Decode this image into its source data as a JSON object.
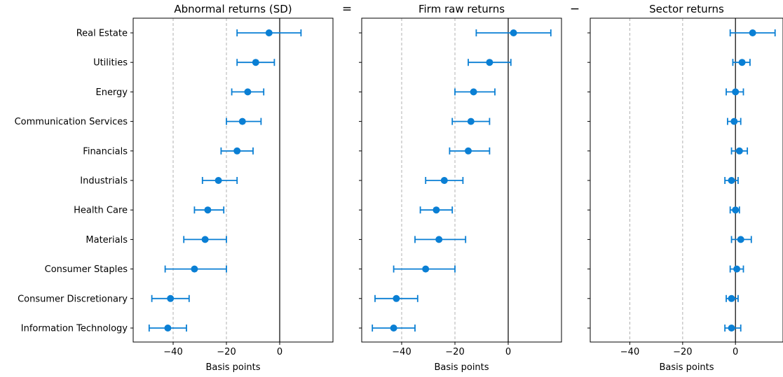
{
  "figure": {
    "operators": [
      "=",
      "−"
    ]
  },
  "chart_data": [
    {
      "type": "scatter",
      "title": "Abnormal returns (SD)",
      "xlabel": "Basis points",
      "xlim": [
        -55,
        20
      ],
      "xticks": [
        -40,
        -20,
        0
      ],
      "xtick_labels": [
        "−40",
        "−20",
        "0"
      ],
      "dashed_lines": [
        -40,
        -20
      ],
      "zero_line": 0,
      "categories": [
        "Real Estate",
        "Utilities",
        "Energy",
        "Communication Services",
        "Financials",
        "Industrials",
        "Health Care",
        "Materials",
        "Consumer Staples",
        "Consumer Discretionary",
        "Information Technology"
      ],
      "values": [
        -4,
        -9,
        -12,
        -14,
        -16,
        -23,
        -27,
        -28,
        -32,
        -41,
        -42
      ],
      "lower": [
        -16,
        -16,
        -18,
        -20,
        -22,
        -29,
        -32,
        -36,
        -43,
        -48,
        -49
      ],
      "upper": [
        8,
        -2,
        -6,
        -7,
        -10,
        -16,
        -21,
        -20,
        -20,
        -34,
        -35
      ],
      "color": "#0a7fd4"
    },
    {
      "type": "scatter",
      "title": "Firm raw returns",
      "xlabel": "Basis points",
      "xlim": [
        -55,
        20
      ],
      "xticks": [
        -40,
        -20,
        0
      ],
      "xtick_labels": [
        "−40",
        "−20",
        "0"
      ],
      "dashed_lines": [
        -40,
        -20
      ],
      "zero_line": 0,
      "categories": [
        "Real Estate",
        "Utilities",
        "Energy",
        "Communication Services",
        "Financials",
        "Industrials",
        "Health Care",
        "Materials",
        "Consumer Staples",
        "Consumer Discretionary",
        "Information Technology"
      ],
      "values": [
        2,
        -7,
        -13,
        -14,
        -15,
        -24,
        -27,
        -26,
        -31,
        -42,
        -43
      ],
      "lower": [
        -12,
        -15,
        -20,
        -21,
        -22,
        -31,
        -33,
        -35,
        -43,
        -50,
        -51
      ],
      "upper": [
        16,
        1,
        -5,
        -7,
        -7,
        -17,
        -21,
        -16,
        -20,
        -34,
        -35
      ],
      "color": "#0a7fd4"
    },
    {
      "type": "scatter",
      "title": "Sector returns",
      "xlabel": "Basis points",
      "xlim": [
        -55,
        18
      ],
      "xticks": [
        -40,
        -20,
        0
      ],
      "xtick_labels": [
        "−40",
        "−20",
        "0"
      ],
      "dashed_lines": [
        -40,
        -20
      ],
      "zero_line": 0,
      "categories": [
        "Real Estate",
        "Utilities",
        "Energy",
        "Communication Services",
        "Financials",
        "Industrials",
        "Health Care",
        "Materials",
        "Consumer Staples",
        "Consumer Discretionary",
        "Information Technology"
      ],
      "values": [
        6.5,
        2.5,
        0,
        -0.5,
        1.5,
        -1.5,
        0,
        2,
        0.5,
        -1.5,
        -1.5
      ],
      "lower": [
        -2,
        -1,
        -3.5,
        -3,
        -1.5,
        -4,
        -2,
        -1.5,
        -2,
        -3.5,
        -4
      ],
      "upper": [
        15,
        5.5,
        3,
        2,
        4.5,
        1,
        1.5,
        6,
        3,
        1,
        2
      ],
      "color": "#0a7fd4"
    }
  ]
}
